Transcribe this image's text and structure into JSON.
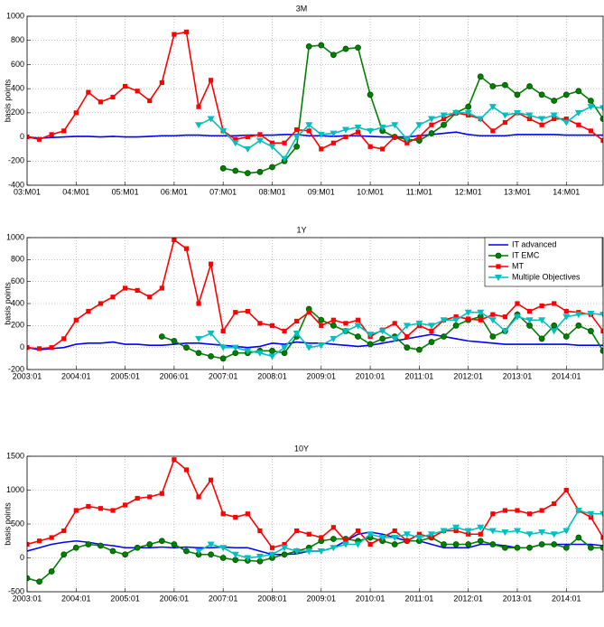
{
  "chart_data": [
    {
      "type": "line",
      "title": "3M",
      "y_label": "basis points",
      "x": [
        2003,
        2003.25,
        2003.5,
        2003.75,
        2004,
        2004.25,
        2004.5,
        2004.75,
        2005,
        2005.25,
        2005.5,
        2005.75,
        2006,
        2006.25,
        2006.5,
        2006.75,
        2007,
        2007.25,
        2007.5,
        2007.75,
        2008,
        2008.25,
        2008.5,
        2008.75,
        2009,
        2009.25,
        2009.5,
        2009.75,
        2010,
        2010.25,
        2010.5,
        2010.75,
        2011,
        2011.25,
        2011.5,
        2011.75,
        2012,
        2012.25,
        2012.5,
        2012.75,
        2013,
        2013.25,
        2013.5,
        2013.75,
        2014,
        2014.25,
        2014.5,
        2014.75
      ],
      "xlim": [
        2003,
        2014.75
      ],
      "xticks": [
        {
          "value": 2003,
          "label": "03:M01"
        },
        {
          "value": 2004,
          "label": "04:M01"
        },
        {
          "value": 2005,
          "label": "05:M01"
        },
        {
          "value": 2006,
          "label": "06:M01"
        },
        {
          "value": 2007,
          "label": "07:M01"
        },
        {
          "value": 2008,
          "label": "08:M01"
        },
        {
          "value": 2009,
          "label": "09:M01"
        },
        {
          "value": 2010,
          "label": "10:M01"
        },
        {
          "value": 2011,
          "label": "11:M01"
        },
        {
          "value": 2012,
          "label": "12:M01"
        },
        {
          "value": 2013,
          "label": "13:M01"
        },
        {
          "value": 2014,
          "label": "14:M01"
        }
      ],
      "ylim": [
        -400,
        1000
      ],
      "yticks": [
        -400,
        -200,
        0,
        200,
        400,
        600,
        800,
        1000
      ],
      "grid": true,
      "series": [
        {
          "color": "#0000ff",
          "marker": "none",
          "values": [
            0,
            -10,
            -5,
            0,
            5,
            5,
            0,
            5,
            0,
            0,
            5,
            10,
            10,
            15,
            15,
            10,
            10,
            10,
            15,
            15,
            15,
            20,
            20,
            10,
            10,
            5,
            10,
            10,
            5,
            0,
            0,
            0,
            10,
            20,
            30,
            40,
            20,
            10,
            10,
            10,
            20,
            20,
            20,
            20,
            15,
            15,
            15,
            15
          ]
        },
        {
          "color": "#008000",
          "marker": "circle",
          "values": [
            null,
            null,
            null,
            null,
            null,
            null,
            null,
            null,
            null,
            null,
            null,
            null,
            null,
            null,
            null,
            null,
            -260,
            -280,
            -300,
            -290,
            -250,
            -200,
            -80,
            750,
            760,
            680,
            730,
            740,
            350,
            50,
            0,
            -20,
            -30,
            30,
            100,
            200,
            250,
            500,
            420,
            430,
            350,
            420,
            350,
            300,
            350,
            380,
            300,
            150
          ]
        },
        {
          "color": "#ff0000",
          "marker": "square",
          "values": [
            0,
            -20,
            20,
            50,
            200,
            370,
            290,
            330,
            420,
            380,
            300,
            450,
            850,
            870,
            250,
            470,
            50,
            -20,
            0,
            20,
            -50,
            -50,
            60,
            50,
            -100,
            -50,
            0,
            40,
            -80,
            -100,
            0,
            -50,
            0,
            100,
            150,
            200,
            180,
            150,
            50,
            120,
            200,
            150,
            100,
            150,
            150,
            100,
            50,
            -30
          ]
        },
        {
          "color": "#00bfbf",
          "marker": "triangle",
          "values": [
            null,
            null,
            null,
            null,
            null,
            null,
            null,
            null,
            null,
            null,
            null,
            null,
            null,
            null,
            100,
            150,
            50,
            -50,
            -100,
            -30,
            -80,
            -180,
            0,
            100,
            20,
            30,
            60,
            80,
            50,
            80,
            100,
            -20,
            100,
            150,
            180,
            200,
            200,
            150,
            250,
            180,
            200,
            180,
            150,
            180,
            120,
            200,
            250,
            240
          ]
        }
      ]
    },
    {
      "type": "line",
      "title": "1Y",
      "y_label": "basis points",
      "legend": "upper right",
      "x": [
        2003,
        2003.25,
        2003.5,
        2003.75,
        2004,
        2004.25,
        2004.5,
        2004.75,
        2005,
        2005.25,
        2005.5,
        2005.75,
        2006,
        2006.25,
        2006.5,
        2006.75,
        2007,
        2007.25,
        2007.5,
        2007.75,
        2008,
        2008.25,
        2008.5,
        2008.75,
        2009,
        2009.25,
        2009.5,
        2009.75,
        2010,
        2010.25,
        2010.5,
        2010.75,
        2011,
        2011.25,
        2011.5,
        2011.75,
        2012,
        2012.25,
        2012.5,
        2012.75,
        2013,
        2013.25,
        2013.5,
        2013.75,
        2014,
        2014.25,
        2014.5,
        2014.75
      ],
      "xlim": [
        2003,
        2014.75
      ],
      "xticks": [
        {
          "value": 2003,
          "label": "2003:01"
        },
        {
          "value": 2004,
          "label": "2004:01"
        },
        {
          "value": 2005,
          "label": "2005:01"
        },
        {
          "value": 2006,
          "label": "2006:01"
        },
        {
          "value": 2007,
          "label": "2007:01"
        },
        {
          "value": 2008,
          "label": "2008:01"
        },
        {
          "value": 2009,
          "label": "2009:01"
        },
        {
          "value": 2010,
          "label": "2010:01"
        },
        {
          "value": 2011,
          "label": "2011:01"
        },
        {
          "value": 2012,
          "label": "2012:01"
        },
        {
          "value": 2013,
          "label": "2013:01"
        },
        {
          "value": 2014,
          "label": "2014:01"
        }
      ],
      "ylim": [
        -200,
        1000
      ],
      "yticks": [
        -200,
        0,
        200,
        400,
        600,
        800,
        1000
      ],
      "grid": true,
      "series": [
        {
          "name": "IT advanced",
          "color": "#0000ff",
          "marker": "none",
          "values": [
            0,
            -20,
            -10,
            0,
            30,
            40,
            40,
            50,
            30,
            30,
            20,
            20,
            30,
            40,
            40,
            30,
            20,
            10,
            0,
            10,
            40,
            30,
            50,
            40,
            40,
            30,
            20,
            10,
            20,
            40,
            60,
            80,
            100,
            120,
            100,
            80,
            60,
            50,
            40,
            30,
            30,
            30,
            30,
            30,
            30,
            20,
            20,
            20
          ]
        },
        {
          "name": "IT EMC",
          "color": "#008000",
          "marker": "circle",
          "values": [
            null,
            null,
            null,
            null,
            null,
            null,
            null,
            null,
            null,
            null,
            null,
            100,
            60,
            0,
            -50,
            -80,
            -100,
            -50,
            -50,
            -30,
            -30,
            -50,
            100,
            350,
            250,
            200,
            150,
            100,
            30,
            80,
            100,
            0,
            -20,
            50,
            100,
            200,
            250,
            280,
            100,
            150,
            300,
            200,
            80,
            200,
            100,
            200,
            150,
            -30
          ]
        },
        {
          "name": "MT",
          "color": "#ff0000",
          "marker": "square",
          "values": [
            0,
            -10,
            0,
            80,
            250,
            330,
            400,
            460,
            540,
            520,
            460,
            540,
            980,
            900,
            400,
            760,
            150,
            320,
            330,
            220,
            200,
            150,
            240,
            320,
            200,
            250,
            220,
            250,
            100,
            160,
            220,
            100,
            200,
            150,
            250,
            280,
            260,
            250,
            300,
            280,
            400,
            330,
            380,
            400,
            330,
            320,
            300,
            150
          ]
        },
        {
          "name": "Multiple Objectives",
          "color": "#00bfbf",
          "marker": "triangle",
          "values": [
            null,
            null,
            null,
            null,
            null,
            null,
            null,
            null,
            null,
            null,
            null,
            null,
            null,
            null,
            80,
            130,
            0,
            0,
            -30,
            -50,
            -80,
            0,
            130,
            0,
            20,
            80,
            150,
            200,
            120,
            150,
            80,
            200,
            220,
            200,
            250,
            250,
            320,
            320,
            250,
            150,
            280,
            250,
            250,
            150,
            280,
            300,
            310,
            300
          ]
        }
      ]
    },
    {
      "type": "line",
      "title": "10Y",
      "y_label": "basis points",
      "x": [
        2003,
        2003.25,
        2003.5,
        2003.75,
        2004,
        2004.25,
        2004.5,
        2004.75,
        2005,
        2005.25,
        2005.5,
        2005.75,
        2006,
        2006.25,
        2006.5,
        2006.75,
        2007,
        2007.25,
        2007.5,
        2007.75,
        2008,
        2008.25,
        2008.5,
        2008.75,
        2009,
        2009.25,
        2009.5,
        2009.75,
        2010,
        2010.25,
        2010.5,
        2010.75,
        2011,
        2011.25,
        2011.5,
        2011.75,
        2012,
        2012.25,
        2012.5,
        2012.75,
        2013,
        2013.25,
        2013.5,
        2013.75,
        2014,
        2014.25,
        2014.5,
        2014.75
      ],
      "xlim": [
        2003,
        2014.75
      ],
      "xticks": [
        {
          "value": 2003,
          "label": "2003:01"
        },
        {
          "value": 2004,
          "label": "2004:01"
        },
        {
          "value": 2005,
          "label": "2005:01"
        },
        {
          "value": 2006,
          "label": "2006:01"
        },
        {
          "value": 2007,
          "label": "2007:01"
        },
        {
          "value": 2008,
          "label": "2008:01"
        },
        {
          "value": 2009,
          "label": "2009:01"
        },
        {
          "value": 2010,
          "label": "2010:01"
        },
        {
          "value": 2011,
          "label": "2011:01"
        },
        {
          "value": 2012,
          "label": "2012:01"
        },
        {
          "value": 2013,
          "label": "2013:01"
        },
        {
          "value": 2014,
          "label": "2014:01"
        }
      ],
      "ylim": [
        -500,
        1500
      ],
      "yticks": [
        -500,
        0,
        500,
        1000,
        1500
      ],
      "grid": true,
      "series": [
        {
          "color": "#0000ff",
          "marker": "none",
          "values": [
            100,
            150,
            200,
            230,
            250,
            230,
            200,
            180,
            150,
            150,
            150,
            160,
            150,
            160,
            150,
            150,
            160,
            150,
            150,
            100,
            50,
            50,
            60,
            100,
            100,
            150,
            250,
            350,
            380,
            350,
            300,
            250,
            250,
            200,
            150,
            150,
            150,
            200,
            200,
            180,
            150,
            150,
            200,
            200,
            200,
            200,
            200,
            180
          ]
        },
        {
          "color": "#008000",
          "marker": "circle",
          "values": [
            -300,
            -350,
            -200,
            50,
            150,
            200,
            180,
            100,
            50,
            150,
            200,
            250,
            200,
            100,
            50,
            50,
            0,
            -30,
            -40,
            -50,
            0,
            50,
            100,
            150,
            250,
            280,
            280,
            250,
            300,
            250,
            200,
            250,
            250,
            300,
            200,
            200,
            200,
            250,
            200,
            150,
            150,
            150,
            200,
            200,
            150,
            300,
            150,
            150
          ]
        },
        {
          "color": "#ff0000",
          "marker": "square",
          "values": [
            200,
            250,
            300,
            400,
            700,
            760,
            730,
            700,
            780,
            880,
            900,
            950,
            1450,
            1300,
            900,
            1150,
            650,
            600,
            650,
            400,
            150,
            200,
            400,
            350,
            300,
            450,
            250,
            400,
            200,
            300,
            400,
            250,
            350,
            300,
            400,
            400,
            350,
            350,
            650,
            700,
            700,
            650,
            700,
            800,
            1000,
            700,
            600,
            300
          ]
        },
        {
          "color": "#00bfbf",
          "marker": "triangle",
          "values": [
            null,
            null,
            null,
            null,
            null,
            null,
            null,
            null,
            null,
            null,
            null,
            null,
            null,
            null,
            100,
            200,
            150,
            50,
            0,
            20,
            50,
            150,
            100,
            100,
            100,
            150,
            200,
            200,
            350,
            300,
            300,
            350,
            300,
            350,
            400,
            450,
            400,
            450,
            400,
            380,
            400,
            350,
            380,
            350,
            400,
            700,
            650,
            650
          ]
        }
      ]
    }
  ]
}
